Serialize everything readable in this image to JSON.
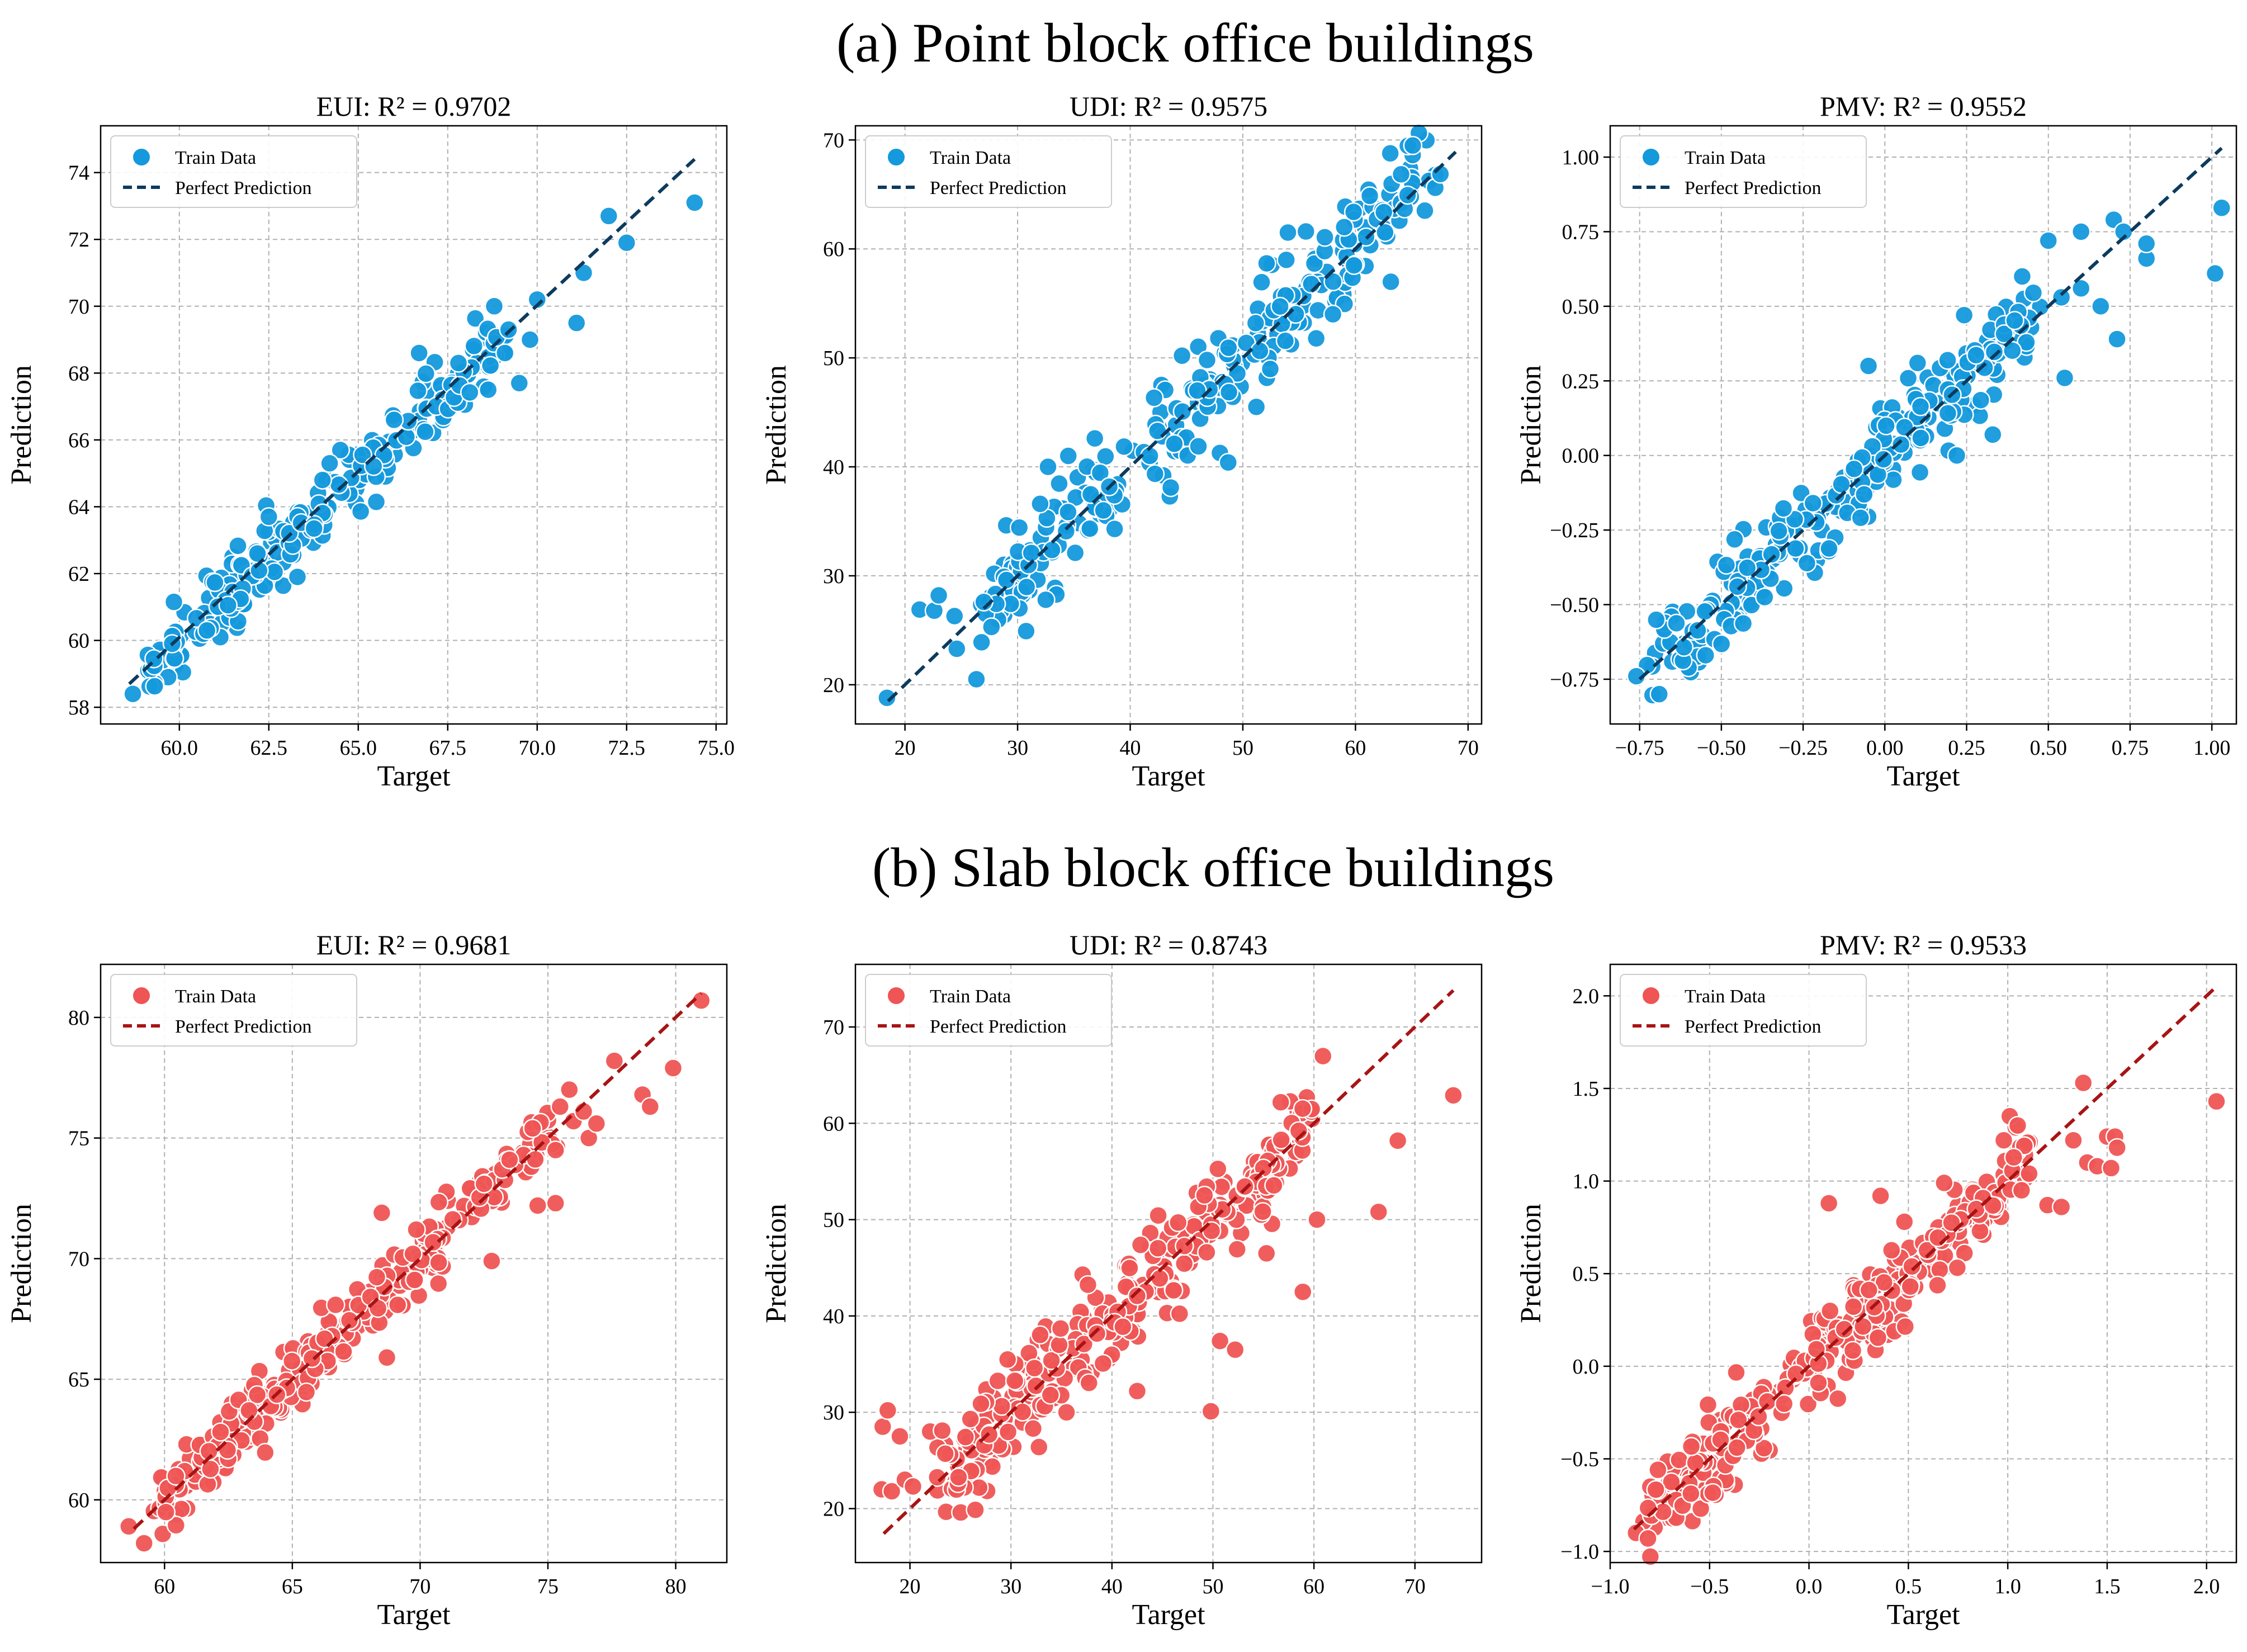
{
  "figure": {
    "sections": [
      {
        "key": "a",
        "title": "(a) Point block office buildings"
      },
      {
        "key": "b",
        "title": "(b) Slab block office buildings"
      }
    ],
    "colors": {
      "point_block_marker": "#1499DC",
      "point_block_line": "#0D3B5E",
      "slab_block_marker": "#EE5554",
      "slab_block_line": "#A81414"
    }
  },
  "chart_data": [
    {
      "id": "a-eui",
      "type": "scatter",
      "row": 0,
      "col": 0,
      "seed": 11,
      "noise": 0.55,
      "n": 240,
      "title": "EUI: R² = 0.9702",
      "xlabel": "Target",
      "ylabel": "Prediction",
      "xlim": [
        57.8,
        75.3
      ],
      "ylim": [
        57.5,
        75.4
      ],
      "xticks": [
        60.0,
        62.5,
        65.0,
        67.5,
        70.0,
        72.5,
        75.0
      ],
      "xtick_labels": [
        "60.0",
        "62.5",
        "65.0",
        "67.5",
        "70.0",
        "72.5",
        "75.0"
      ],
      "yticks": [
        58,
        60,
        62,
        64,
        66,
        68,
        70,
        72,
        74
      ],
      "ytick_labels": [
        "58",
        "60",
        "62",
        "64",
        "66",
        "68",
        "70",
        "72",
        "74"
      ],
      "line": [
        [
          58.6,
          58.7
        ],
        [
          74.4,
          74.4
        ]
      ],
      "range": [
        58.8,
        69.0
      ],
      "series_label": "Train Data",
      "line_label": "Perfect Prediction",
      "palette": "blue",
      "points": [
        [
          58.7,
          58.4
        ],
        [
          59.8,
          59.9
        ],
        [
          63.3,
          61.9
        ],
        [
          64.0,
          64.8
        ],
        [
          66.7,
          68.6
        ],
        [
          67.8,
          68.3
        ],
        [
          68.8,
          70.0
        ],
        [
          69.1,
          68.6
        ],
        [
          69.2,
          69.3
        ],
        [
          69.5,
          67.7
        ],
        [
          69.8,
          69.0
        ],
        [
          70.0,
          70.2
        ],
        [
          71.1,
          69.5
        ],
        [
          71.3,
          71.0
        ],
        [
          72.0,
          72.7
        ],
        [
          72.5,
          71.9
        ],
        [
          74.4,
          73.1
        ],
        [
          62.5,
          63.7
        ],
        [
          64.2,
          65.3
        ],
        [
          66.0,
          66.6
        ]
      ]
    },
    {
      "id": "a-udi",
      "type": "scatter",
      "row": 0,
      "col": 1,
      "seed": 23,
      "noise": 2.3,
      "n": 260,
      "title": "UDI: R² = 0.9575",
      "xlabel": "Target",
      "ylabel": "Prediction",
      "xlim": [
        15.6,
        71.2
      ],
      "ylim": [
        16.4,
        71.3
      ],
      "xticks": [
        20,
        30,
        40,
        50,
        60,
        70
      ],
      "xtick_labels": [
        "20",
        "30",
        "40",
        "50",
        "60",
        "70"
      ],
      "yticks": [
        20,
        30,
        40,
        50,
        60,
        70
      ],
      "ytick_labels": [
        "20",
        "30",
        "40",
        "50",
        "60",
        "70"
      ],
      "line": [
        [
          18.5,
          18.5
        ],
        [
          68.9,
          68.9
        ]
      ],
      "range": [
        27.0,
        68.5
      ],
      "series_label": "Train Data",
      "line_label": "Perfect Prediction",
      "palette": "blue",
      "points": [
        [
          18.4,
          18.8
        ],
        [
          21.3,
          26.9
        ],
        [
          22.6,
          26.8
        ],
        [
          23.0,
          28.2
        ],
        [
          24.4,
          26.3
        ],
        [
          24.6,
          23.3
        ],
        [
          26.8,
          23.9
        ],
        [
          27.0,
          27.6
        ],
        [
          32.5,
          27.8
        ],
        [
          32.0,
          36.6
        ],
        [
          32.7,
          40.0
        ],
        [
          34.5,
          41.0
        ],
        [
          43.6,
          38.1
        ],
        [
          48.7,
          40.4
        ],
        [
          44.6,
          50.2
        ],
        [
          54.0,
          61.5
        ],
        [
          55.6,
          61.6
        ],
        [
          59.0,
          62.0
        ],
        [
          58.0,
          54.0
        ],
        [
          51.2,
          45.5
        ]
      ]
    },
    {
      "id": "a-pmv",
      "type": "scatter",
      "row": 0,
      "col": 2,
      "seed": 37,
      "noise": 0.075,
      "n": 260,
      "title": "PMV: R² = 0.9552",
      "xlabel": "Target",
      "ylabel": "Prediction",
      "xlim": [
        -0.84,
        1.075
      ],
      "ylim": [
        -0.9,
        1.105
      ],
      "xticks": [
        -0.75,
        -0.5,
        -0.25,
        0.0,
        0.25,
        0.5,
        0.75,
        1.0
      ],
      "xtick_labels": [
        "−0.75",
        "−0.50",
        "−0.25",
        "0.00",
        "0.25",
        "0.50",
        "0.75",
        "1.00"
      ],
      "yticks": [
        -0.75,
        -0.5,
        -0.25,
        0.0,
        0.25,
        0.5,
        0.75,
        1.0
      ],
      "ytick_labels": [
        "−0.75",
        "−0.50",
        "−0.25",
        "0.00",
        "0.25",
        "0.50",
        "0.75",
        "1.00"
      ],
      "line": [
        [
          -0.75,
          -0.75
        ],
        [
          1.03,
          1.03
        ]
      ],
      "range": [
        -0.72,
        0.45
      ],
      "series_label": "Train Data",
      "line_label": "Perfect Prediction",
      "palette": "blue",
      "points": [
        [
          -0.76,
          -0.74
        ],
        [
          -0.69,
          -0.8
        ],
        [
          0.33,
          0.07
        ],
        [
          0.5,
          0.72
        ],
        [
          0.55,
          0.26
        ],
        [
          0.54,
          0.53
        ],
        [
          0.6,
          0.56
        ],
        [
          0.66,
          0.5
        ],
        [
          0.7,
          0.79
        ],
        [
          0.71,
          0.39
        ],
        [
          0.73,
          0.75
        ],
        [
          0.8,
          0.66
        ],
        [
          0.8,
          0.71
        ],
        [
          1.01,
          0.61
        ],
        [
          1.03,
          0.83
        ],
        [
          0.6,
          0.75
        ],
        [
          0.42,
          0.6
        ],
        [
          0.1,
          0.31
        ],
        [
          0.22,
          0.0
        ],
        [
          -0.05,
          0.3
        ]
      ]
    },
    {
      "id": "b-eui",
      "type": "scatter",
      "row": 1,
      "col": 0,
      "seed": 53,
      "noise": 0.75,
      "n": 300,
      "title": "EUI: R² = 0.9681",
      "xlabel": "Target",
      "ylabel": "Prediction",
      "xlim": [
        57.5,
        82.0
      ],
      "ylim": [
        57.4,
        82.2
      ],
      "xticks": [
        60,
        65,
        70,
        75,
        80
      ],
      "xtick_labels": [
        "60",
        "65",
        "70",
        "75",
        "80"
      ],
      "yticks": [
        60,
        65,
        70,
        75,
        80
      ],
      "ytick_labels": [
        "60",
        "65",
        "70",
        "75",
        "80"
      ],
      "line": [
        [
          58.8,
          58.8
        ],
        [
          81.0,
          81.0
        ]
      ],
      "range": [
        59.3,
        75.5
      ],
      "series_label": "Train Data",
      "line_label": "Perfect Prediction",
      "palette": "red",
      "points": [
        [
          58.6,
          58.9
        ],
        [
          59.2,
          58.2
        ],
        [
          68.7,
          65.9
        ],
        [
          72.8,
          69.9
        ],
        [
          74.6,
          72.2
        ],
        [
          75.3,
          72.3
        ],
        [
          75.3,
          74.5
        ],
        [
          76.0,
          75.7
        ],
        [
          76.4,
          76.1
        ],
        [
          77.6,
          78.2
        ],
        [
          78.7,
          76.8
        ],
        [
          79.0,
          76.3
        ],
        [
          79.9,
          77.9
        ],
        [
          81.0,
          80.7
        ],
        [
          74.4,
          75.4
        ],
        [
          73.5,
          74.1
        ],
        [
          72.5,
          73.1
        ],
        [
          68.5,
          71.9
        ],
        [
          76.6,
          75.0
        ],
        [
          76.9,
          75.6
        ]
      ]
    },
    {
      "id": "b-udi",
      "type": "scatter",
      "row": 1,
      "col": 1,
      "seed": 71,
      "noise": 2.6,
      "n": 320,
      "title": "UDI: R² = 0.8743",
      "xlabel": "Target",
      "ylabel": "Prediction",
      "xlim": [
        14.6,
        76.6
      ],
      "ylim": [
        14.4,
        76.5
      ],
      "xticks": [
        20,
        30,
        40,
        50,
        60,
        70
      ],
      "xtick_labels": [
        "20",
        "30",
        "40",
        "50",
        "60",
        "70"
      ],
      "yticks": [
        20,
        30,
        40,
        50,
        60,
        70
      ],
      "ytick_labels": [
        "20",
        "30",
        "40",
        "50",
        "60",
        "70"
      ],
      "line": [
        [
          17.4,
          17.4
        ],
        [
          73.8,
          73.8
        ]
      ],
      "range": [
        24.0,
        60.0
      ],
      "series_label": "Train Data",
      "line_label": "Perfect Prediction",
      "palette": "red",
      "points": [
        [
          17.2,
          22.0
        ],
        [
          17.3,
          28.5
        ],
        [
          17.8,
          30.2
        ],
        [
          18.2,
          21.8
        ],
        [
          19.0,
          27.5
        ],
        [
          19.5,
          23.0
        ],
        [
          20.3,
          22.3
        ],
        [
          22.0,
          28.0
        ],
        [
          23.2,
          28.1
        ],
        [
          23.5,
          25.7
        ],
        [
          42.5,
          32.2
        ],
        [
          49.8,
          30.1
        ],
        [
          50.7,
          37.4
        ],
        [
          52.2,
          36.5
        ],
        [
          55.3,
          46.5
        ],
        [
          58.9,
          42.5
        ],
        [
          60.3,
          50.0
        ],
        [
          66.4,
          50.8
        ],
        [
          68.3,
          58.2
        ],
        [
          73.8,
          62.9
        ]
      ]
    },
    {
      "id": "b-pmv",
      "type": "scatter",
      "row": 1,
      "col": 2,
      "seed": 89,
      "noise": 0.11,
      "n": 300,
      "title": "PMV: R² = 0.9533",
      "xlabel": "Target",
      "ylabel": "Prediction",
      "xlim": [
        -1.0,
        2.15
      ],
      "ylim": [
        -1.06,
        2.17
      ],
      "xticks": [
        -1.0,
        -0.5,
        0.0,
        0.5,
        1.0,
        1.5,
        2.0
      ],
      "xtick_labels": [
        "−1.0",
        "−0.5",
        "0.0",
        "0.5",
        "1.0",
        "1.5",
        "2.0"
      ],
      "yticks": [
        -1.0,
        -0.5,
        0.0,
        0.5,
        1.0,
        1.5,
        2.0
      ],
      "ytick_labels": [
        "−1.0",
        "−0.5",
        "0.0",
        "0.5",
        "1.0",
        "1.5",
        "2.0"
      ],
      "line": [
        [
          -0.88,
          -0.88
        ],
        [
          2.05,
          2.05
        ]
      ],
      "range": [
        -0.8,
        1.1
      ],
      "series_label": "Train Data",
      "line_label": "Perfect Prediction",
      "palette": "red",
      "points": [
        [
          -0.87,
          -0.9
        ],
        [
          -0.81,
          -0.93
        ],
        [
          0.1,
          0.88
        ],
        [
          0.36,
          0.92
        ],
        [
          0.48,
          0.78
        ],
        [
          0.68,
          0.99
        ],
        [
          0.98,
          1.22
        ],
        [
          1.01,
          1.35
        ],
        [
          1.05,
          1.3
        ],
        [
          1.2,
          0.87
        ],
        [
          1.27,
          0.86
        ],
        [
          1.33,
          1.22
        ],
        [
          1.38,
          1.53
        ],
        [
          1.4,
          1.1
        ],
        [
          1.45,
          1.08
        ],
        [
          1.5,
          1.24
        ],
        [
          1.52,
          1.07
        ],
        [
          1.54,
          1.24
        ],
        [
          1.55,
          1.18
        ],
        [
          2.05,
          1.43
        ]
      ]
    }
  ]
}
